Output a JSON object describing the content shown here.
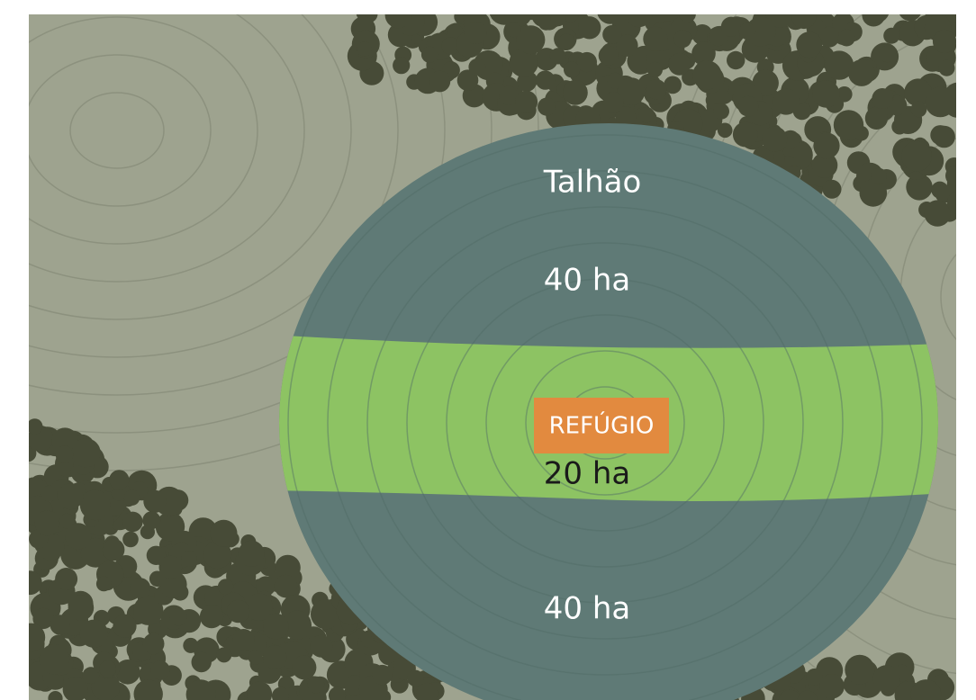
{
  "field": {
    "title": "Talhão",
    "zones": [
      {
        "area": "40 ha"
      },
      {
        "label": "REFÚGIO",
        "area": "20 ha"
      },
      {
        "area": "40 ha"
      }
    ]
  }
}
